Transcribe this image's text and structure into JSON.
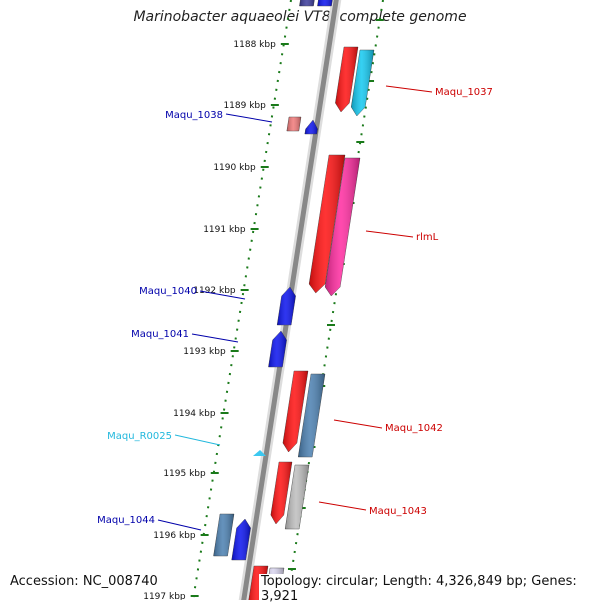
{
  "title": "Marinobacter aquaeolei VT8, complete genome",
  "accession_text": "Accession: NC_008740",
  "summary_text": "Topology: circular; Length: 4,326,849 bp; Genes: 3,921",
  "colors": {
    "forward_red": "#ff1010",
    "forward_cyan": "#12c8f0",
    "forward_pink": "#ff2ba0",
    "forward_steel": "#4a7fb0",
    "forward_grey": "#bdbdbd",
    "reverse_blue": "#0a12ee",
    "reverse_light_red": "#f07878",
    "rna_cyan": "#3cc8f0",
    "label_red": "#cc0000",
    "label_blue": "#0000aa",
    "label_cyan": "#22b8dd",
    "tick_green": "#1a7a1a",
    "backbone": "#888888"
  },
  "ticks": [
    {
      "label": "1188 kbp"
    },
    {
      "label": "1189 kbp"
    },
    {
      "label": "1190 kbp"
    },
    {
      "label": "1191 kbp"
    },
    {
      "label": "1192 kbp"
    },
    {
      "label": "1193 kbp"
    },
    {
      "label": "1194 kbp"
    },
    {
      "label": "1195 kbp"
    },
    {
      "label": "1196 kbp"
    },
    {
      "label": "1197 kbp"
    }
  ],
  "gene_labels": [
    {
      "text": "Maqu_1037",
      "strand": "forward"
    },
    {
      "text": "Maqu_1038",
      "strand": "reverse"
    },
    {
      "text": "rlmL",
      "strand": "forward"
    },
    {
      "text": "Maqu_1040",
      "strand": "reverse"
    },
    {
      "text": "Maqu_1041",
      "strand": "reverse"
    },
    {
      "text": "Maqu_R0025",
      "strand": "rna"
    },
    {
      "text": "Maqu_1042",
      "strand": "forward"
    },
    {
      "text": "Maqu_1043",
      "strand": "forward"
    },
    {
      "text": "Maqu_1044",
      "strand": "reverse"
    }
  ]
}
